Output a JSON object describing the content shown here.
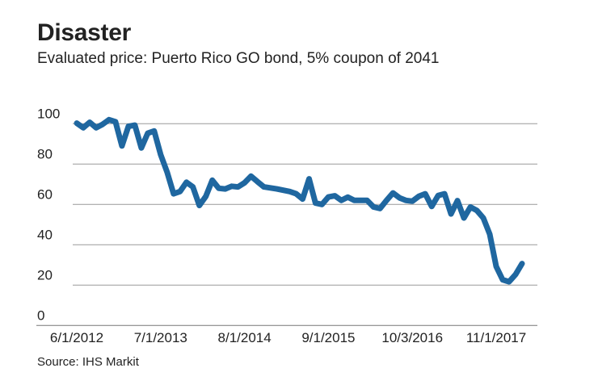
{
  "chart_data": {
    "type": "line",
    "title": "Disaster",
    "subtitle": "Evaluated price: Puerto Rico GO bond, 5% coupon of 2041",
    "source": "Source: IHS Markit",
    "xlabel": "",
    "ylabel": "",
    "ylim": [
      0,
      100
    ],
    "yticks": [
      "0",
      "20",
      "40",
      "60",
      "80",
      "100"
    ],
    "xticks": [
      {
        "label": "6/1/2012",
        "date": "2012-06"
      },
      {
        "label": "7/1/2013",
        "date": "2013-07"
      },
      {
        "label": "8/1/2014",
        "date": "2014-08"
      },
      {
        "label": "9/1/2015",
        "date": "2015-09"
      },
      {
        "label": "10/3/2016",
        "date": "2016-10"
      },
      {
        "label": "11/1/2017",
        "date": "2017-11"
      }
    ],
    "grid": true,
    "color": "#1f67a0",
    "series": [
      {
        "x": [
          "2012-06",
          "2012-07",
          "2012-08",
          "2012-09",
          "2012-10",
          "2012-11",
          "2012-12",
          "2013-01",
          "2013-02",
          "2013-03",
          "2013-04",
          "2013-05",
          "2013-06",
          "2013-07",
          "2013-08",
          "2013-09",
          "2013-10",
          "2013-11",
          "2013-12",
          "2014-01",
          "2014-02",
          "2014-03",
          "2014-04",
          "2014-05",
          "2014-06",
          "2014-07",
          "2014-08",
          "2014-09",
          "2014-10",
          "2014-11",
          "2015-01",
          "2015-03",
          "2015-04",
          "2015-05",
          "2015-06",
          "2015-07",
          "2015-08",
          "2015-09",
          "2015-10",
          "2015-11",
          "2015-12",
          "2016-01",
          "2016-03",
          "2016-04",
          "2016-05",
          "2016-06",
          "2016-07",
          "2016-08",
          "2016-09",
          "2016-10",
          "2016-11",
          "2016-12",
          "2017-01",
          "2017-02",
          "2017-03",
          "2017-04",
          "2017-05",
          "2017-06",
          "2017-07",
          "2017-08",
          "2017-09",
          "2017-10",
          "2017-11",
          "2017-12",
          "2018-01",
          "2018-02",
          "2018-03"
        ],
        "values": [
          100.3,
          98,
          100.7,
          98,
          99.7,
          102,
          101,
          89,
          98.7,
          99.3,
          88,
          95.3,
          96.4,
          84.7,
          76,
          65.3,
          66.4,
          71,
          68.7,
          59.5,
          64,
          72,
          68,
          67.7,
          69,
          68.7,
          70.7,
          74,
          71.3,
          68.7,
          67.7,
          66.4,
          65.3,
          62.7,
          72.7,
          60.7,
          60,
          63.7,
          64.3,
          62,
          63.6,
          62,
          62,
          58.7,
          58,
          62,
          65.7,
          63.3,
          62,
          61.6,
          64,
          65.3,
          59,
          64.4,
          65.3,
          55.3,
          61.9,
          53.3,
          58.7,
          57,
          53.3,
          45.3,
          29.3,
          22.7,
          21.7,
          25.3,
          30.7
        ]
      }
    ]
  }
}
